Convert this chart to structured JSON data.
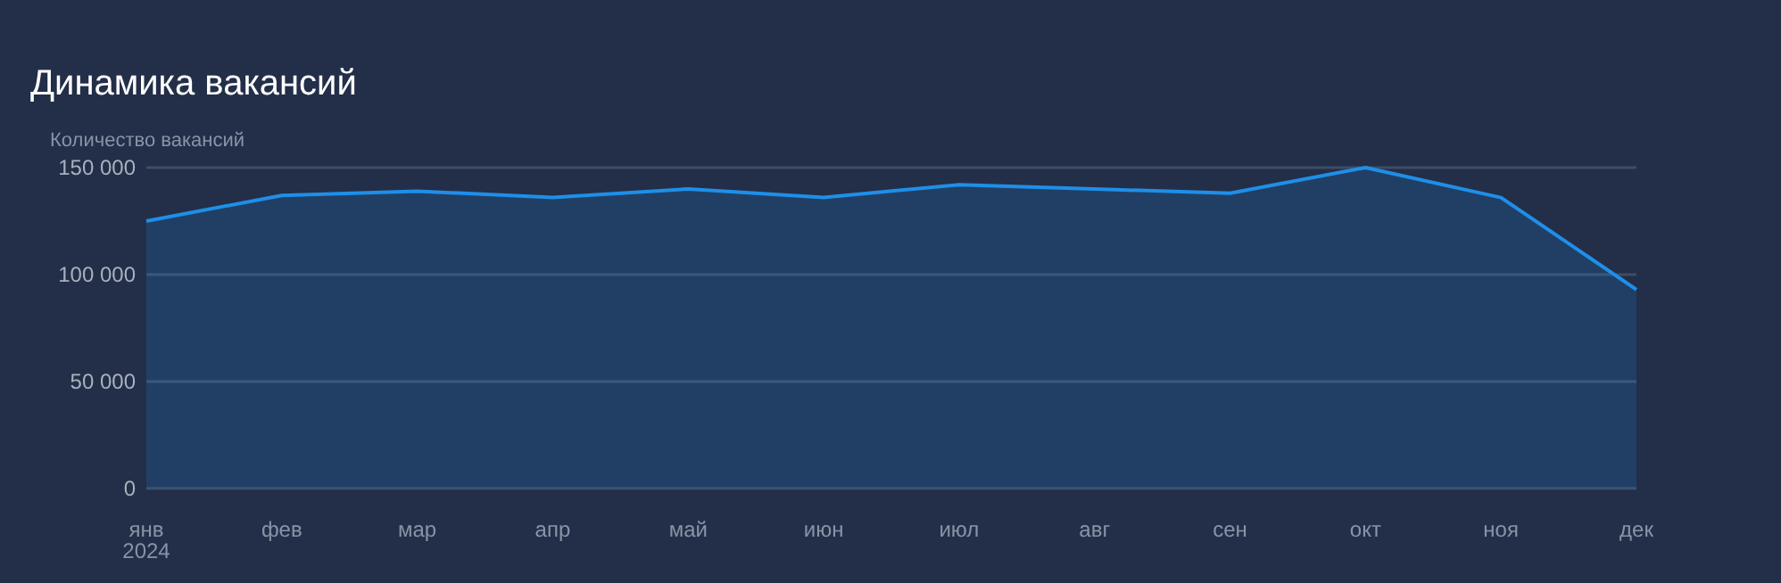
{
  "chart_data": {
    "type": "area",
    "title": "Динамика вакансий",
    "ylabel": "Количество вакансий",
    "categories": [
      "янв\n2024",
      "фев",
      "мар",
      "апр",
      "май",
      "июн",
      "июл",
      "авг",
      "сен",
      "окт",
      "ноя",
      "дек"
    ],
    "series": [
      {
        "color": "#1e8fe8",
        "values": [
          125000,
          137000,
          139000,
          136000,
          140000,
          136000,
          142000,
          140000,
          138000,
          150000,
          136000,
          93000
        ]
      }
    ],
    "ylim": [
      0,
      150000
    ],
    "yticks": [
      {
        "value": 0,
        "label": "0"
      },
      {
        "value": 50000,
        "label": "50 000"
      },
      {
        "value": 100000,
        "label": "100 000"
      },
      {
        "value": 150000,
        "label": "150 000"
      }
    ],
    "grid": "y",
    "marker": "none",
    "line_style": "solid"
  }
}
